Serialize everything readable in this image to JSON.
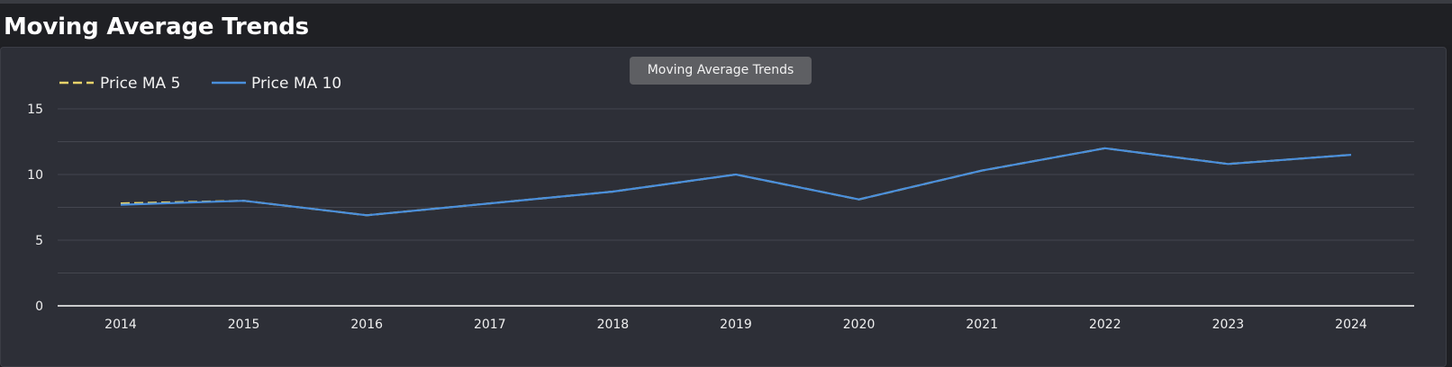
{
  "page": {
    "title": "Moving Average Trends"
  },
  "tooltip": {
    "text": "Moving Average Trends"
  },
  "colors": {
    "background": "#1e1f23",
    "panel": "#2d2f37",
    "grid": "#44464f",
    "axis": "#ffffff",
    "ma5": "#e8d36a",
    "ma10": "#4a8fdc"
  },
  "chart_data": {
    "type": "line",
    "title": "Moving Average Trends",
    "xlabel": "",
    "ylabel": "",
    "x": [
      "2014",
      "2015",
      "2016",
      "2017",
      "2018",
      "2019",
      "2020",
      "2021",
      "2022",
      "2023",
      "2024"
    ],
    "ylim": [
      0,
      15
    ],
    "yticks": [
      0,
      5,
      10,
      15
    ],
    "grid": true,
    "legend_position": "top-left",
    "series": [
      {
        "name": "Price MA 5",
        "style": "dashed",
        "color": "#e8d36a",
        "values": [
          7.8,
          8.0,
          6.9,
          7.8,
          8.7,
          10.0,
          8.1,
          10.3,
          12.0,
          10.8,
          11.5
        ]
      },
      {
        "name": "Price MA 10",
        "style": "solid",
        "color": "#4a8fdc",
        "values": [
          7.7,
          8.0,
          6.9,
          7.8,
          8.7,
          10.0,
          8.1,
          10.3,
          12.0,
          10.8,
          11.5
        ]
      }
    ]
  }
}
